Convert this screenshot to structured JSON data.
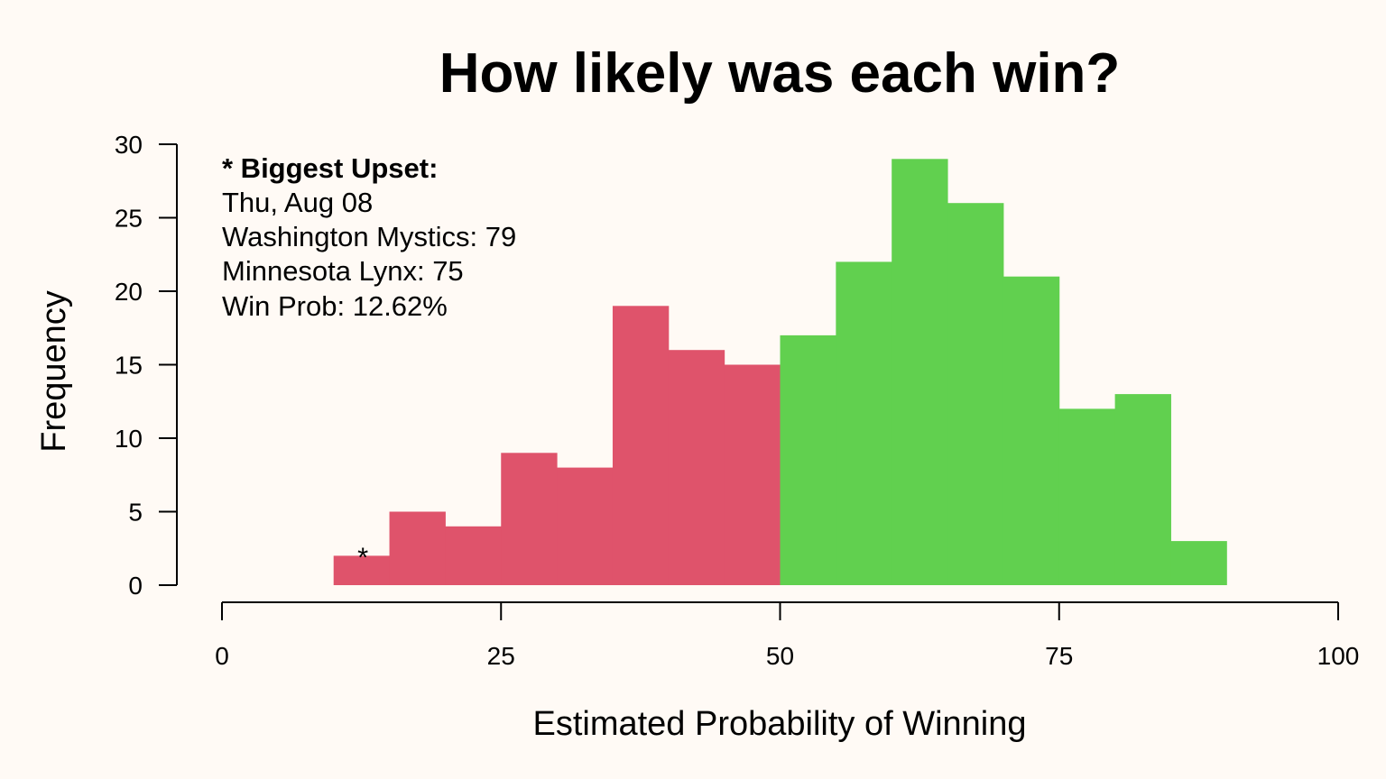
{
  "chart_data": {
    "type": "bar",
    "title": "How likely was each win?",
    "xlabel": "Estimated Probability of Winning",
    "ylabel": "Frequency",
    "xlim": [
      0,
      100
    ],
    "ylim": [
      0,
      30
    ],
    "x_ticks": [
      "0",
      "25",
      "50",
      "75",
      "100"
    ],
    "y_ticks": [
      "0",
      "5",
      "10",
      "15",
      "20",
      "25",
      "30"
    ],
    "bin_width": 5,
    "bins": [
      {
        "start": 10,
        "end": 15,
        "value": 2
      },
      {
        "start": 15,
        "end": 20,
        "value": 5
      },
      {
        "start": 20,
        "end": 25,
        "value": 4
      },
      {
        "start": 25,
        "end": 30,
        "value": 9
      },
      {
        "start": 30,
        "end": 35,
        "value": 8
      },
      {
        "start": 35,
        "end": 40,
        "value": 19
      },
      {
        "start": 40,
        "end": 45,
        "value": 16
      },
      {
        "start": 45,
        "end": 50,
        "value": 15
      },
      {
        "start": 50,
        "end": 55,
        "value": 17
      },
      {
        "start": 55,
        "end": 60,
        "value": 22
      },
      {
        "start": 60,
        "end": 65,
        "value": 29
      },
      {
        "start": 65,
        "end": 70,
        "value": 26
      },
      {
        "start": 70,
        "end": 75,
        "value": 21
      },
      {
        "start": 75,
        "end": 80,
        "value": 12
      },
      {
        "start": 80,
        "end": 85,
        "value": 13
      },
      {
        "start": 85,
        "end": 90,
        "value": 3
      }
    ],
    "colors": {
      "below_50": "#df536b",
      "above_50": "#61d04f",
      "background": "#fffaf5"
    },
    "color_threshold": 50,
    "upset_marker": {
      "symbol": "*",
      "x": 12.62
    },
    "annotation": {
      "heading": "* Biggest Upset:",
      "lines": [
        "Thu, Aug 08",
        "Washington Mystics: 79",
        "Minnesota Lynx: 75",
        "Win Prob: 12.62%"
      ]
    },
    "grid": false,
    "legend": "none"
  }
}
